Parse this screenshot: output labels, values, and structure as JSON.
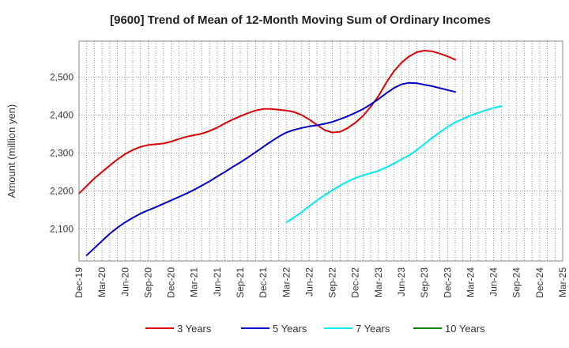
{
  "chart_data": {
    "type": "line",
    "title": "[9600]  Trend of Mean of 12-Month Moving Sum of Ordinary Incomes",
    "xlabel": "",
    "ylabel": "Amount (million yen)",
    "ylim": [
      2015,
      2595
    ],
    "grid": true,
    "legend_position": "bottom",
    "x_ticks": [
      "Dec-19",
      "Mar-20",
      "Jun-20",
      "Sep-20",
      "Dec-20",
      "Mar-21",
      "Jun-21",
      "Sep-21",
      "Dec-21",
      "Mar-22",
      "Jun-22",
      "Sep-22",
      "Dec-22",
      "Mar-23",
      "Jun-23",
      "Sep-23",
      "Dec-23",
      "Mar-24",
      "Jun-24",
      "Sep-24",
      "Dec-24",
      "Mar-25"
    ],
    "y_ticks": [
      2100,
      2200,
      2300,
      2400,
      2500
    ],
    "y_tick_labels": [
      "2,100",
      "2,200",
      "2,300",
      "2,400",
      "2,500"
    ],
    "series": [
      {
        "name": "3 Years",
        "color": "#dd0000",
        "start_index": 0,
        "values": [
          2193,
          2213,
          2233,
          2250,
          2267,
          2283,
          2297,
          2308,
          2316,
          2321,
          2323,
          2325,
          2330,
          2337,
          2343,
          2347,
          2351,
          2358,
          2367,
          2378,
          2388,
          2397,
          2405,
          2412,
          2416,
          2416,
          2414,
          2412,
          2408,
          2400,
          2388,
          2374,
          2360,
          2354,
          2356,
          2366,
          2380,
          2398,
          2422,
          2450,
          2485,
          2515,
          2538,
          2555,
          2566,
          2570,
          2568,
          2562,
          2555,
          2546
        ]
      },
      {
        "name": "5 Years",
        "color": "#0000cc",
        "start_index": 1,
        "values": [
          2030,
          2049,
          2068,
          2087,
          2103,
          2117,
          2129,
          2140,
          2149,
          2157,
          2166,
          2175,
          2184,
          2193,
          2203,
          2214,
          2225,
          2238,
          2250,
          2263,
          2275,
          2288,
          2302,
          2316,
          2330,
          2343,
          2354,
          2361,
          2366,
          2370,
          2373,
          2377,
          2382,
          2389,
          2397,
          2406,
          2416,
          2428,
          2442,
          2457,
          2471,
          2481,
          2485,
          2484,
          2480,
          2476,
          2471,
          2466,
          2461
        ]
      },
      {
        "name": "7 Years",
        "color": "#00eeee",
        "start_index": 27,
        "values": [
          2117,
          2130,
          2144,
          2160,
          2175,
          2189,
          2202,
          2214,
          2225,
          2234,
          2241,
          2247,
          2253,
          2262,
          2272,
          2283,
          2294,
          2308,
          2324,
          2340,
          2355,
          2369,
          2381,
          2390,
          2399,
          2406,
          2413,
          2419,
          2424
        ]
      },
      {
        "name": "10 Years",
        "color": "#008800",
        "start_index": 0,
        "values": []
      }
    ]
  }
}
